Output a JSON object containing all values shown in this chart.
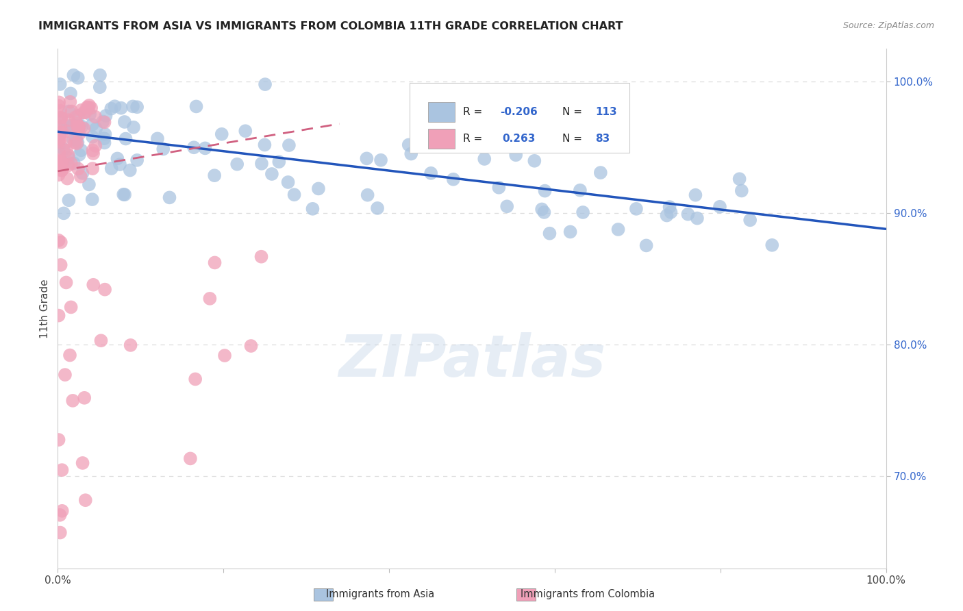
{
  "title": "IMMIGRANTS FROM ASIA VS IMMIGRANTS FROM COLOMBIA 11TH GRADE CORRELATION CHART",
  "source": "Source: ZipAtlas.com",
  "ylabel": "11th Grade",
  "y_axis_ticks": [
    "100.0%",
    "90.0%",
    "80.0%",
    "70.0%"
  ],
  "y_axis_tick_vals": [
    1.0,
    0.9,
    0.8,
    0.7
  ],
  "xlim": [
    0.0,
    1.0
  ],
  "ylim": [
    0.63,
    1.025
  ],
  "legend_r_asia": "-0.206",
  "legend_n_asia": "113",
  "legend_r_colombia": "0.263",
  "legend_n_colombia": "83",
  "color_asia": "#aac4e0",
  "color_colombia": "#f0a0b8",
  "color_asia_line": "#2255bb",
  "color_colombia_line": "#d06080",
  "watermark": "ZIPatlas",
  "background_color": "#ffffff",
  "grid_color": "#dddddd",
  "tick_color_right": "#3366cc",
  "bottom_label_asia": "Immigrants from Asia",
  "bottom_label_colombia": "Immigrants from Colombia"
}
